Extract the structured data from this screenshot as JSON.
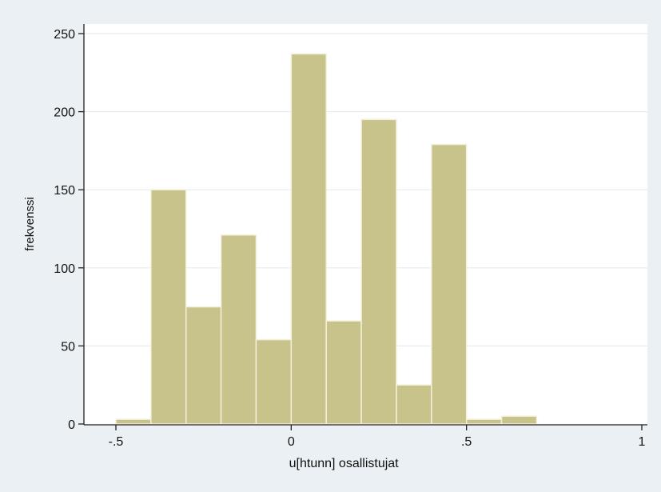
{
  "chart_data": {
    "type": "bar",
    "title": "",
    "xlabel": "u[htunn] osallistujat",
    "ylabel": "frekvenssi",
    "xlim": [
      -0.5,
      1.0
    ],
    "ylim": [
      0,
      250
    ],
    "xticks": [
      {
        "value": -0.5,
        "label": "-.5"
      },
      {
        "value": 0,
        "label": "0"
      },
      {
        "value": 0.5,
        "label": ".5"
      },
      {
        "value": 1,
        "label": "1"
      }
    ],
    "yticks": [
      {
        "value": 0,
        "label": "0"
      },
      {
        "value": 50,
        "label": "50"
      },
      {
        "value": 100,
        "label": "100"
      },
      {
        "value": 150,
        "label": "150"
      },
      {
        "value": 200,
        "label": "200"
      },
      {
        "value": 250,
        "label": "250"
      }
    ],
    "grid": true,
    "bin_width": 0.1,
    "bins": [
      {
        "start": -0.5,
        "end": -0.4,
        "value": 3
      },
      {
        "start": -0.4,
        "end": -0.3,
        "value": 150
      },
      {
        "start": -0.3,
        "end": -0.2,
        "value": 75
      },
      {
        "start": -0.2,
        "end": -0.1,
        "value": 121
      },
      {
        "start": -0.1,
        "end": 0.0,
        "value": 54
      },
      {
        "start": 0.0,
        "end": 0.1,
        "value": 237
      },
      {
        "start": 0.1,
        "end": 0.2,
        "value": 66
      },
      {
        "start": 0.2,
        "end": 0.3,
        "value": 195
      },
      {
        "start": 0.3,
        "end": 0.4,
        "value": 25
      },
      {
        "start": 0.4,
        "end": 0.5,
        "value": 179
      },
      {
        "start": 0.5,
        "end": 0.6,
        "value": 3
      },
      {
        "start": 0.6,
        "end": 0.7,
        "value": 5
      }
    ],
    "colors": {
      "bar_fill": "#c8c38a",
      "bar_stroke": "#f2f0dc",
      "plot_bg": "#ffffff",
      "outer_bg": "#eaf0f3",
      "grid": "#e6ecef",
      "axis": "#222222"
    }
  }
}
